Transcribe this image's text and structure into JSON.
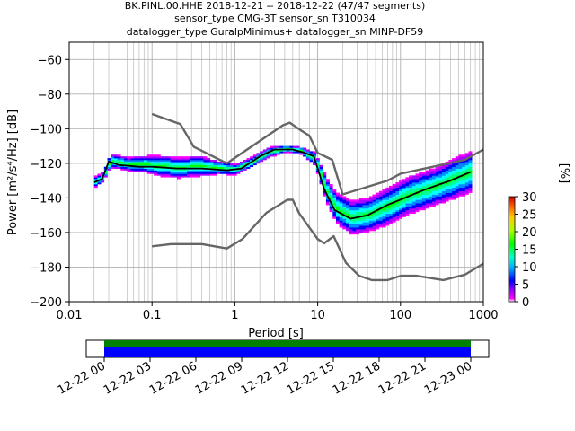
{
  "title_lines": [
    "BK.PINL.00.HHE   2018-12-21 -- 2018-12-22  (47/47 segments)",
    "sensor_type CMG-3T sensor_sn T310034",
    "datalogger_type GuralpMinimus+ datalogger_sn MINP-DF59"
  ],
  "chart_data": {
    "type": "heatmap",
    "xlabel": "Period [s]",
    "ylabel": "Power [m²/s⁴/Hz] [dB]",
    "xscale": "log",
    "xlim": [
      0.01,
      1000
    ],
    "ylim": [
      -200,
      -50
    ],
    "xticks": [
      0.01,
      0.1,
      1,
      10,
      100,
      1000
    ],
    "xtick_labels": [
      "0.01",
      "0.1",
      "1",
      "10",
      "100",
      "1000"
    ],
    "yticks": [
      -200,
      -180,
      -160,
      -140,
      -120,
      -100,
      -80,
      -60
    ],
    "ytick_labels": [
      "−200",
      "−180",
      "−160",
      "−140",
      "−120",
      "−100",
      "−80",
      "−60"
    ],
    "grid": true,
    "colorbar": {
      "label": "[%]",
      "range": [
        0,
        30
      ],
      "ticks": [
        "0",
        "5",
        "10",
        "15",
        "20",
        "25",
        "30"
      ]
    },
    "series": [
      {
        "role": "NHNM",
        "color": "#666666",
        "x": [
          0.1,
          0.22,
          0.32,
          0.8,
          3.8,
          4.6,
          6.3,
          7.9,
          10.0,
          15.0,
          20.0,
          70.0,
          100.0,
          600.0,
          1000.0
        ],
        "y": [
          -91.5,
          -97.4,
          -110.5,
          -120.0,
          -98.0,
          -96.5,
          -101.0,
          -104.0,
          -114.0,
          -118.0,
          -138.0,
          -130.0,
          -126.0,
          -118.0,
          -112.0
        ]
      },
      {
        "role": "NLNM",
        "color": "#666666",
        "x": [
          0.1,
          0.17,
          0.4,
          0.8,
          1.24,
          2.4,
          4.3,
          5.0,
          6.0,
          10.0,
          12.0,
          15.6,
          21.9,
          31.6,
          45.0,
          70.0,
          101.0,
          154.0,
          328.0,
          600.0,
          1000.0
        ],
        "y": [
          -168.0,
          -166.7,
          -166.7,
          -169.2,
          -163.7,
          -148.6,
          -141.1,
          -141.1,
          -149.0,
          -163.8,
          -166.2,
          -162.1,
          -177.5,
          -185.0,
          -187.5,
          -187.5,
          -185.0,
          -185.0,
          -187.5,
          -184.4,
          -178.0
        ]
      },
      {
        "role": "mean",
        "color": "#000000",
        "x": [
          0.02,
          0.025,
          0.03,
          0.04,
          0.07,
          0.1,
          0.2,
          0.4,
          0.8,
          1.2,
          2.0,
          3.0,
          5.0,
          7.0,
          9.0,
          12.0,
          16.0,
          25.0,
          40.0,
          70.0,
          100.0,
          200.0,
          400.0,
          700.0
        ],
        "y": [
          -131.0,
          -129.0,
          -119.0,
          -121.0,
          -122.0,
          -122.0,
          -123.0,
          -123.0,
          -124.0,
          -123.0,
          -116.0,
          -112.0,
          -112.0,
          -114.0,
          -116.0,
          -135.0,
          -147.0,
          -152.0,
          -150.0,
          -144.0,
          -141.0,
          -135.0,
          -130.0,
          -125.0
        ]
      }
    ],
    "density": [
      {
        "period": 0.02,
        "center": -131,
        "spread": 3
      },
      {
        "period": 0.025,
        "center": -128,
        "spread": 3
      },
      {
        "period": 0.03,
        "center": -119,
        "spread": 4
      },
      {
        "period": 0.05,
        "center": -121,
        "spread": 4
      },
      {
        "period": 0.08,
        "center": -121,
        "spread": 5
      },
      {
        "period": 0.12,
        "center": -122,
        "spread": 6
      },
      {
        "period": 0.2,
        "center": -123,
        "spread": 6
      },
      {
        "period": 0.35,
        "center": -122,
        "spread": 6
      },
      {
        "period": 0.6,
        "center": -123,
        "spread": 4
      },
      {
        "period": 1.0,
        "center": -124,
        "spread": 3
      },
      {
        "period": 1.5,
        "center": -120,
        "spread": 3
      },
      {
        "period": 2.5,
        "center": -114,
        "spread": 3
      },
      {
        "period": 4.0,
        "center": -112,
        "spread": 2
      },
      {
        "period": 6.0,
        "center": -113,
        "spread": 2
      },
      {
        "period": 9.0,
        "center": -118,
        "spread": 4
      },
      {
        "period": 12.0,
        "center": -135,
        "spread": 7
      },
      {
        "period": 16.0,
        "center": -146,
        "spread": 9
      },
      {
        "period": 25.0,
        "center": -152,
        "spread": 10
      },
      {
        "period": 40.0,
        "center": -150,
        "spread": 10
      },
      {
        "period": 70.0,
        "center": -145,
        "spread": 11
      },
      {
        "period": 120.0,
        "center": -139,
        "spread": 11
      },
      {
        "period": 250.0,
        "center": -134,
        "spread": 11
      },
      {
        "period": 500.0,
        "center": -128,
        "spread": 12
      },
      {
        "period": 700.0,
        "center": -125,
        "spread": 12
      }
    ]
  },
  "timeline": {
    "ticks": [
      "12-22 00",
      "12-22 03",
      "12-22 06",
      "12-22 09",
      "12-22 12",
      "12-22 15",
      "12-22 18",
      "12-22 21",
      "12-23 00"
    ],
    "colors": {
      "covered": "#008000",
      "used": "#0000ff"
    }
  }
}
